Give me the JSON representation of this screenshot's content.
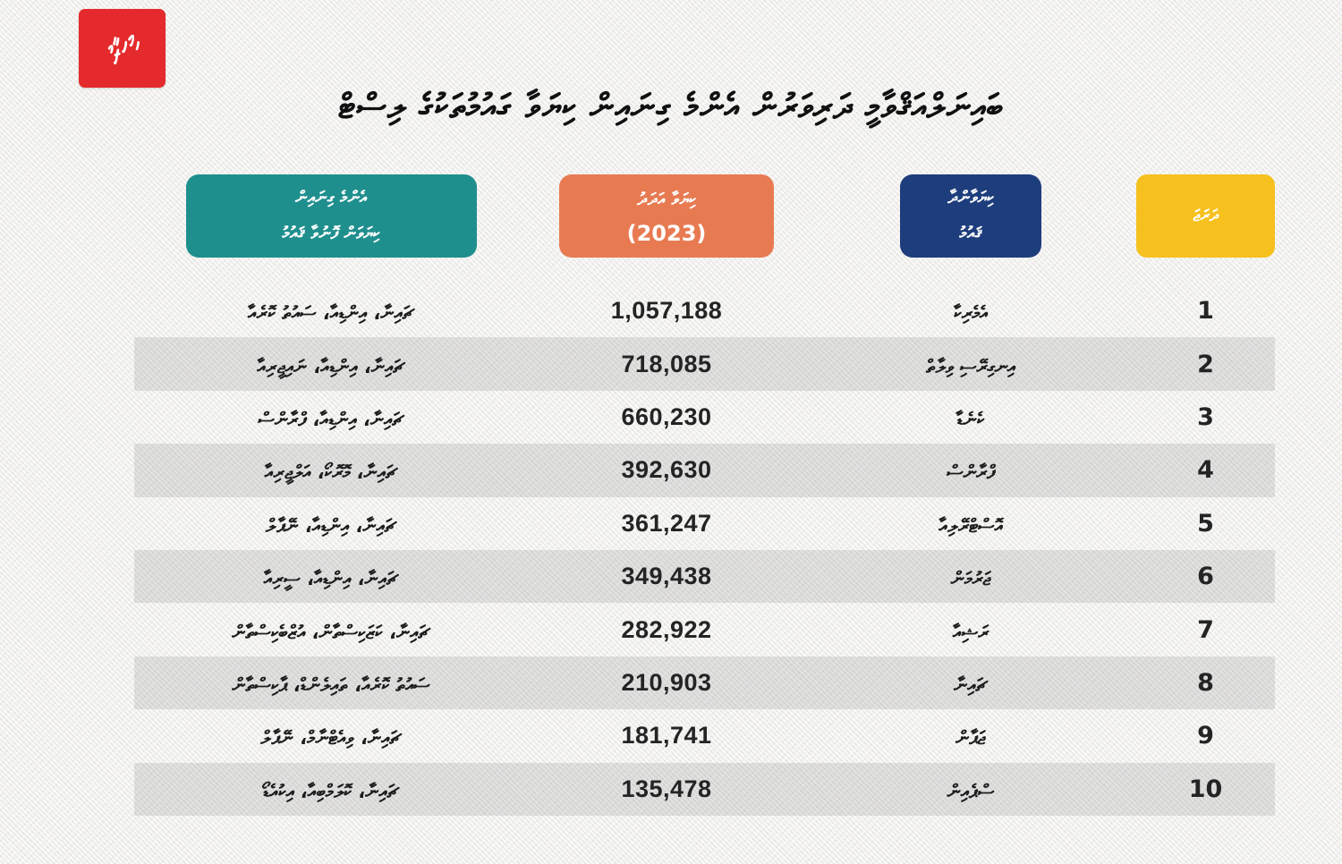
{
  "logo": {
    "text": "މިހާރު",
    "bg_color": "#e42a2c"
  },
  "title": "ބައިނަލްއަޤްވާމީ ދަރިވަރުން އެންމެ ގިނައިން ކިޔަވާ ގައުމުތަކުގެ ލިސްޓް",
  "columns": {
    "sources": {
      "label_line1": "އެންމެ ގިނައިން",
      "label_line2": "ކިޔަވަން ފޮނުވާ ޤައުމު",
      "color": "#1f8f8e"
    },
    "count": {
      "label": "ކިޔަވާ އަދަދު",
      "year": "(2023)",
      "color": "#e87a52"
    },
    "country": {
      "label_line1": "ކިޔަވާންދާ",
      "label_line2": "ޤައުމު",
      "color": "#1e3d7c"
    },
    "rank": {
      "label": "ދަރަޖަ",
      "color": "#f6c01e"
    }
  },
  "rows": [
    {
      "rank": "1",
      "country": "އެމެރިކާ",
      "count": "1,057,188",
      "sources": "ޗައިނާ، އިންޑިއާ، ސައުތު ކޮރެއާ"
    },
    {
      "rank": "2",
      "country": "އިނގިރޭސި ވިލާތް",
      "count": "718,085",
      "sources": "ޗައިނާ، އިންޑިއާ، ނައިޖީރިއާ"
    },
    {
      "rank": "3",
      "country": "ކެނެޑާ",
      "count": "660,230",
      "sources": "ޗައިނާ، އިންޑިއާ، ފްރާންސް"
    },
    {
      "rank": "4",
      "country": "ފްރާންސް",
      "count": "392,630",
      "sources": "ޗައިނާ، މޮރޮކޯ، އަލްޖީރިއާ"
    },
    {
      "rank": "5",
      "country": "އޮސްޓްރޭލިއާ",
      "count": "361,247",
      "sources": "ޗައިނާ، އިންޑިއާ، ނޭޕާލް"
    },
    {
      "rank": "6",
      "country": "ޖަރުމަން",
      "count": "349,438",
      "sources": "ޗައިނާ، އިންޑިއާ، ސީރިއާ"
    },
    {
      "rank": "7",
      "country": "ރަޝިއާ",
      "count": "282,922",
      "sources": "ޗައިނާ، ކަޒަކިސްތާން، އުޒްބެކިސްތާން"
    },
    {
      "rank": "8",
      "country": "ޗައިނާ",
      "count": "210,903",
      "sources": "ސައުތު ކޮރެއާ، ތައިލެންޑް، ޕާކިސްތާން"
    },
    {
      "rank": "9",
      "country": "ޖަޕާން",
      "count": "181,741",
      "sources": "ޗައިނާ، ވިއެޓްނާމް، ނޭޕާލް"
    },
    {
      "rank": "10",
      "country": "ސްޕެއިން",
      "count": "135,478",
      "sources": "ޗައިނާ، ކޮލަމްބިއާ، އިކުއެޑޯ"
    }
  ],
  "chart_data": {
    "type": "table",
    "title": "ބައިނަލްއަޤްވާމީ ދަރިވަރުން އެންމެ ގިނައިން ކިޔަވާ ގައުމުތަކުގެ ލިސްޓް",
    "year": "2023",
    "columns": [
      "ދަރަޖަ",
      "ކިޔަވާންދާ ޤައުމު",
      "ކިޔަވާ އަދަދު (2023)",
      "އެންމެ ގިނައިން ކިޔަވަން ފޮނުވާ ޤައުމު"
    ],
    "categories": [
      "އެމެރިކާ",
      "އިނގިރޭސި ވިލާތް",
      "ކެނެޑާ",
      "ފްރާންސް",
      "އޮސްޓްރޭލިއާ",
      "ޖަރުމަން",
      "ރަޝިއާ",
      "ޗައިނާ",
      "ޖަޕާން",
      "ސްޕެއިން"
    ],
    "values": [
      1057188,
      718085,
      660230,
      392630,
      361247,
      349438,
      282922,
      210903,
      181741,
      135478
    ],
    "ranks": [
      1,
      2,
      3,
      4,
      5,
      6,
      7,
      8,
      9,
      10
    ],
    "source_countries": [
      "ޗައިނާ، އިންޑިއާ، ސައުތު ކޮރެއާ",
      "ޗައިނާ، އިންޑިއާ، ނައިޖީރިއާ",
      "ޗައިނާ، އިންޑިއާ، ފްރާންސް",
      "ޗައިނާ، މޮރޮކޯ، އަލްޖީރިއާ",
      "ޗައިނާ، އިންޑިއާ، ނޭޕާލް",
      "ޗައިނާ، އިންޑިއާ، ސީރިއާ",
      "ޗައިނާ، ކަޒަކިސްތާން، އުޒްބެކިސްތާން",
      "ސައުތު ކޮރެއާ، ތައިލެންޑް، ޕާކިސްތާން",
      "ޗައިނާ، ވިއެޓްނާމް، ނޭޕާލް",
      "ޗައިނާ، ކޮލަމްބިއާ، އިކުއެޑޯ"
    ]
  }
}
